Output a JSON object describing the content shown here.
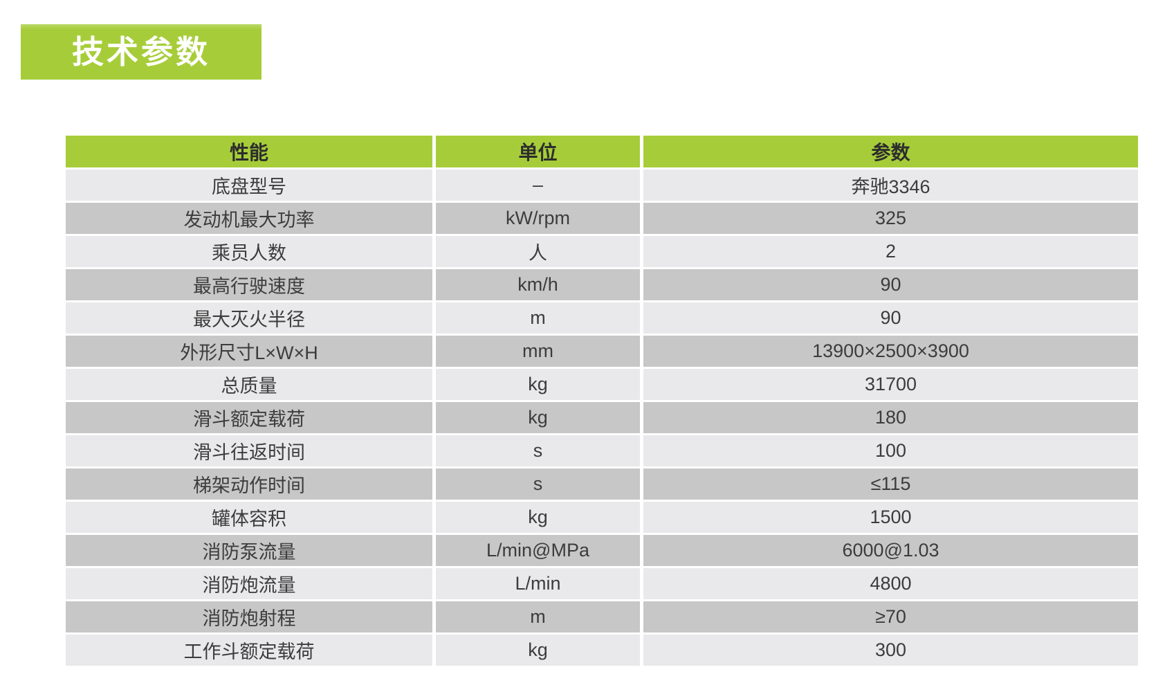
{
  "badge": {
    "label": "技术参数"
  },
  "colors": {
    "green": "#a6cd39",
    "green_light": "#b9d968",
    "row_light": "#e9e9eb",
    "row_dark": "#c7c7c7",
    "header_text": "#2d2d2d",
    "cell_text": "#3c3c3c",
    "badge_text": "#ffffff"
  },
  "table": {
    "columns": [
      "性能",
      "单位",
      "参数"
    ],
    "rows": [
      [
        "底盘型号",
        "–",
        "奔驰3346"
      ],
      [
        "发动机最大功率",
        "kW/rpm",
        "325"
      ],
      [
        "乘员人数",
        "人",
        "2"
      ],
      [
        "最高行驶速度",
        "km/h",
        "90"
      ],
      [
        "最大灭火半径",
        "m",
        "90"
      ],
      [
        "外形尺寸L×W×H",
        "mm",
        "13900×2500×3900"
      ],
      [
        "总质量",
        "kg",
        "31700"
      ],
      [
        "滑斗额定载荷",
        "kg",
        "180"
      ],
      [
        "滑斗往返时间",
        "s",
        "100"
      ],
      [
        "梯架动作时间",
        "s",
        "≤115"
      ],
      [
        "罐体容积",
        "kg",
        "1500"
      ],
      [
        "消防泵流量",
        "L/min@MPa",
        "6000@1.03"
      ],
      [
        "消防炮流量",
        "L/min",
        "4800"
      ],
      [
        "消防炮射程",
        "m",
        "≥70"
      ],
      [
        "工作斗额定载荷",
        "kg",
        "300"
      ]
    ]
  }
}
